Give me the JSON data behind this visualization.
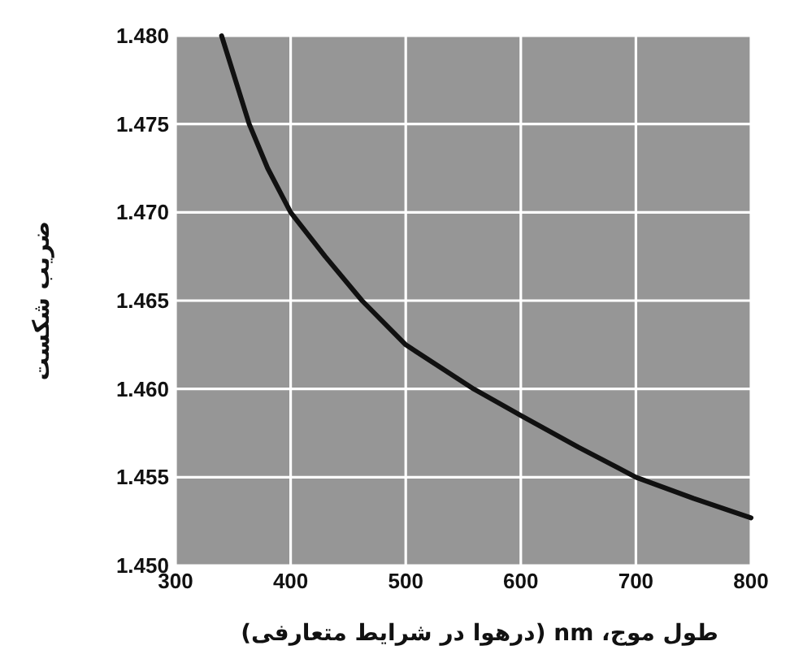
{
  "chart_data": {
    "type": "line",
    "xlabel": "طول موج، nm (درهوا در شرایط متعارفی)",
    "ylabel": "ضریب شکست",
    "x": [
      340,
      352,
      364,
      380,
      400,
      430,
      462,
      500,
      559,
      600,
      650,
      700,
      750,
      800
    ],
    "series": [
      {
        "color": "#111111",
        "values": [
          1.48,
          1.4775,
          1.475,
          1.4725,
          1.47,
          1.4675,
          1.465,
          1.4625,
          1.46,
          1.4585,
          1.4567,
          1.455,
          1.4538,
          1.4527
        ]
      }
    ],
    "xlim": [
      300,
      800
    ],
    "ylim": [
      1.45,
      1.48
    ],
    "xticks": [
      300,
      400,
      500,
      600,
      700,
      800
    ],
    "yticks": [
      {
        "value": 1.45,
        "label": "1.450"
      },
      {
        "value": 1.455,
        "label": "1.455"
      },
      {
        "value": 1.46,
        "label": "1.460"
      },
      {
        "value": 1.465,
        "label": "1.465"
      },
      {
        "value": 1.47,
        "label": "1.470"
      },
      {
        "value": 1.475,
        "label": "1.475"
      },
      {
        "value": 1.48,
        "label": "1.480"
      }
    ],
    "grid": true,
    "marker": "none",
    "line_style": "solid"
  }
}
